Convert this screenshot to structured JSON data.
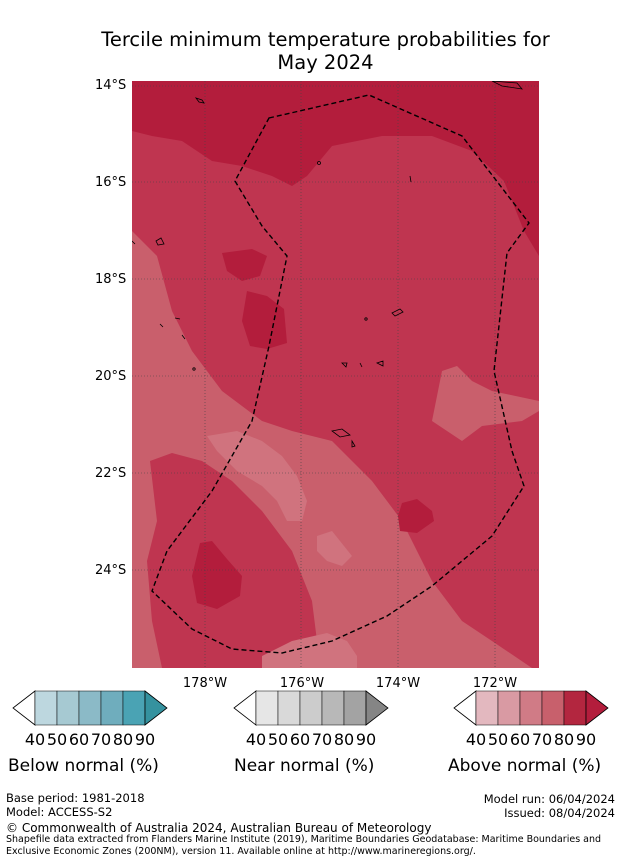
{
  "title_line1": "Tercile minimum temperature probabilities for",
  "title_line2": "May 2024",
  "lat_ticks": [
    "14°S",
    "16°S",
    "18°S",
    "20°S",
    "22°S",
    "24°S"
  ],
  "lon_ticks": [
    "178°W",
    "176°W",
    "174°W",
    "172°W"
  ],
  "colorbars": [
    {
      "title": "Below normal (%)",
      "labels": [
        "40",
        "50",
        "60",
        "70",
        "80",
        "90"
      ],
      "colors": [
        "#bdd7df",
        "#a6c9d2",
        "#8bbac7",
        "#6fadbd",
        "#4aa3b4",
        "#35929f"
      ]
    },
    {
      "title": "Near normal (%)",
      "labels": [
        "40",
        "50",
        "60",
        "70",
        "80",
        "90"
      ],
      "colors": [
        "#e6e6e6",
        "#d9d9d9",
        "#cccccc",
        "#b8b8b8",
        "#a3a3a3",
        "#858585"
      ]
    },
    {
      "title": "Above normal (%)",
      "labels": [
        "40",
        "50",
        "60",
        "70",
        "80",
        "90"
      ],
      "colors": [
        "#e3b8bf",
        "#d99aa3",
        "#d07b86",
        "#c8606c",
        "#b3263f",
        "#b31d3c"
      ]
    }
  ],
  "map_colors": {
    "c60": "#c95f6c",
    "c70": "#bf3550",
    "c80": "#b31d3c",
    "c50": "#d0737e"
  },
  "footer": {
    "base_period": "Base period: 1981-2018",
    "model": "Model: ACCESS-S2",
    "model_run": "Model run: 06/04/2024",
    "issued": "Issued: 08/04/2024",
    "copyright": "© Commonwealth of Australia 2024, Australian Bureau of Meteorology",
    "shapefile_line1": "Shapefile data extracted from Flanders Marine Institute (2019), Maritime Boundaries Geodatabase: Maritime Boundaries and",
    "shapefile_line2": "Exclusive Economic Zones (200NM), version 11. Available online at http://www.marineregions.org/."
  }
}
